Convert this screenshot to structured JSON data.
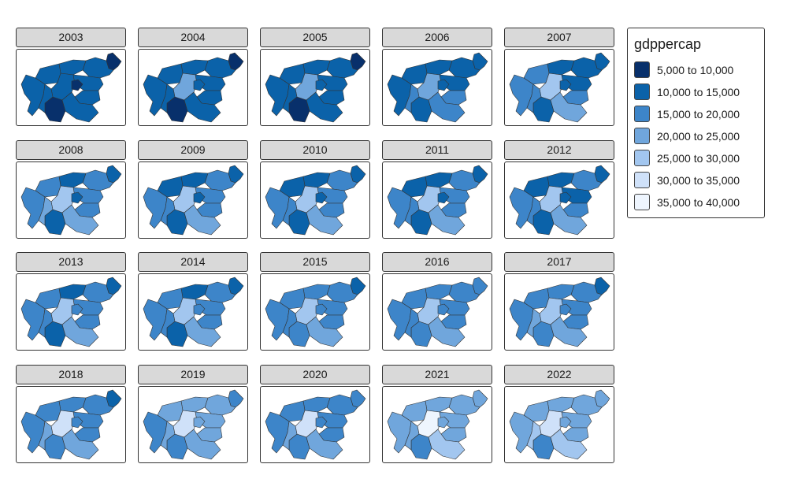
{
  "legend": {
    "title": "gdppercap",
    "classes": [
      {
        "label": "5,000 to 10,000",
        "color": "#08306b"
      },
      {
        "label": "10,000 to 15,000",
        "color": "#0b62a9"
      },
      {
        "label": "15,000 to 20,000",
        "color": "#3d85c9"
      },
      {
        "label": "20,000 to 25,000",
        "color": "#70a6dc"
      },
      {
        "label": "25,000 to 30,000",
        "color": "#a2c6ef"
      },
      {
        "label": "30,000 to 35,000",
        "color": "#cfe1f9"
      },
      {
        "label": "35,000 to 40,000",
        "color": "#eef5fe"
      }
    ]
  },
  "facets": [
    {
      "year": "2003",
      "regions": [
        0,
        1,
        1,
        1,
        1,
        1,
        0,
        1,
        0,
        1,
        1,
        1
      ]
    },
    {
      "year": "2004",
      "regions": [
        0,
        1,
        1,
        1,
        1,
        1,
        0,
        3,
        1,
        1,
        1,
        1
      ]
    },
    {
      "year": "2005",
      "regions": [
        0,
        1,
        1,
        1,
        1,
        1,
        0,
        3,
        1,
        1,
        1,
        1
      ]
    },
    {
      "year": "2006",
      "regions": [
        1,
        1,
        1,
        1,
        1,
        1,
        1,
        3,
        1,
        2,
        2,
        2
      ]
    },
    {
      "year": "2007",
      "regions": [
        1,
        1,
        1,
        1,
        2,
        2,
        1,
        4,
        1,
        2,
        3,
        2
      ]
    },
    {
      "year": "2008",
      "regions": [
        1,
        2,
        2,
        1,
        2,
        2,
        1,
        4,
        1,
        2,
        3,
        3
      ]
    },
    {
      "year": "2009",
      "regions": [
        1,
        2,
        2,
        1,
        1,
        2,
        1,
        4,
        1,
        2,
        3,
        2
      ]
    },
    {
      "year": "2010",
      "regions": [
        1,
        2,
        2,
        1,
        1,
        2,
        1,
        4,
        1,
        2,
        3,
        2
      ]
    },
    {
      "year": "2011",
      "regions": [
        1,
        2,
        2,
        1,
        1,
        2,
        1,
        4,
        1,
        2,
        3,
        2
      ]
    },
    {
      "year": "2012",
      "regions": [
        1,
        2,
        1,
        1,
        1,
        2,
        1,
        4,
        1,
        2,
        3,
        2
      ]
    },
    {
      "year": "2013",
      "regions": [
        1,
        2,
        2,
        1,
        2,
        2,
        1,
        4,
        2,
        2,
        3,
        2
      ]
    },
    {
      "year": "2014",
      "regions": [
        1,
        2,
        2,
        1,
        2,
        2,
        1,
        4,
        2,
        2,
        3,
        2
      ]
    },
    {
      "year": "2015",
      "regions": [
        1,
        2,
        2,
        2,
        2,
        2,
        2,
        4,
        2,
        2,
        3,
        2
      ]
    },
    {
      "year": "2016",
      "regions": [
        2,
        2,
        2,
        2,
        2,
        2,
        2,
        4,
        2,
        2,
        3,
        2
      ]
    },
    {
      "year": "2017",
      "regions": [
        1,
        2,
        2,
        2,
        2,
        2,
        2,
        4,
        2,
        2,
        3,
        3
      ]
    },
    {
      "year": "2018",
      "regions": [
        1,
        2,
        2,
        2,
        2,
        2,
        2,
        5,
        2,
        2,
        3,
        3
      ]
    },
    {
      "year": "2019",
      "regions": [
        2,
        3,
        3,
        3,
        3,
        2,
        2,
        5,
        3,
        3,
        3,
        3
      ]
    },
    {
      "year": "2020",
      "regions": [
        2,
        2,
        2,
        2,
        2,
        2,
        2,
        5,
        2,
        2,
        3,
        3
      ]
    },
    {
      "year": "2021",
      "regions": [
        3,
        3,
        3,
        3,
        3,
        3,
        2,
        6,
        3,
        3,
        4,
        3
      ]
    },
    {
      "year": "2022",
      "regions": [
        3,
        3,
        3,
        3,
        3,
        3,
        2,
        5,
        3,
        3,
        4,
        4
      ]
    }
  ]
}
